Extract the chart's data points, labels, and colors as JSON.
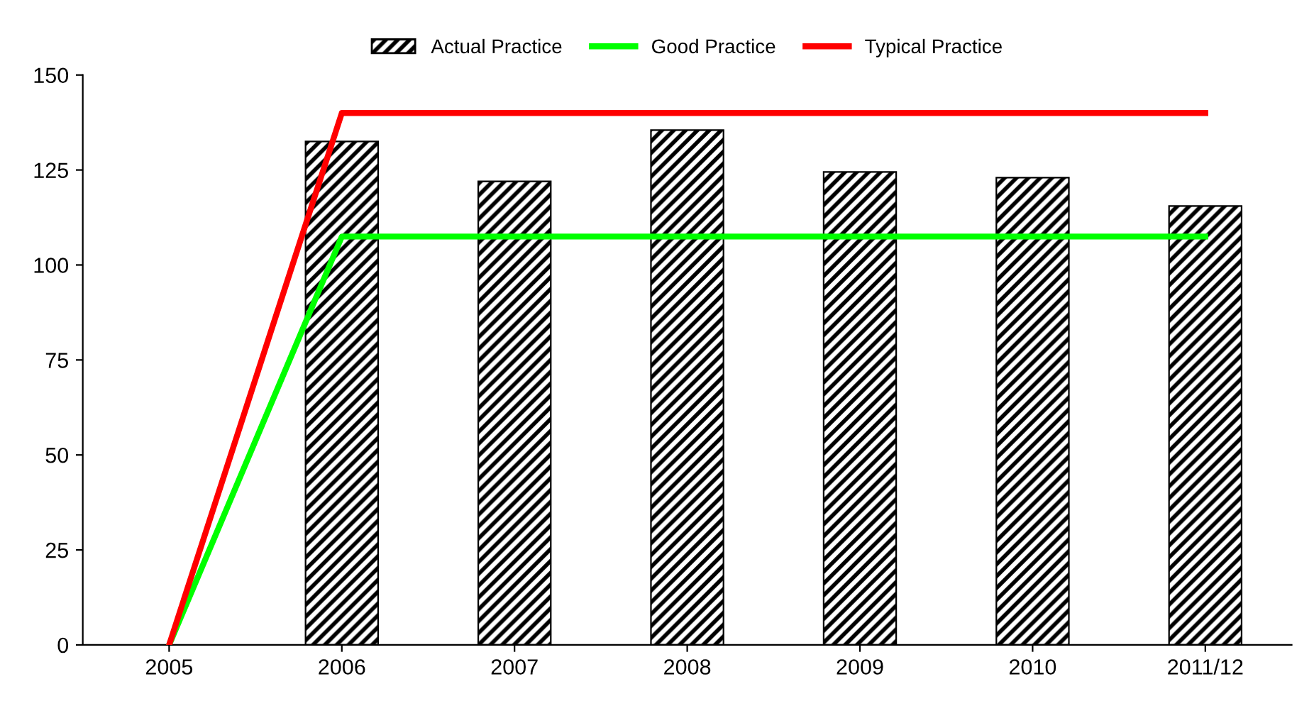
{
  "chart_data": {
    "type": "bar",
    "categories": [
      "2005",
      "2006",
      "2007",
      "2008",
      "2009",
      "2010",
      "2011/12"
    ],
    "series": [
      {
        "name": "Actual Practice",
        "color": "#000000",
        "values": [
          null,
          132.5,
          122,
          135.5,
          124.5,
          123,
          115.5
        ]
      },
      {
        "name": "Good Practice",
        "type": "line",
        "color": "#00ff00",
        "values": [
          0,
          107.5,
          107.5,
          107.5,
          107.5,
          107.5,
          107.5
        ]
      },
      {
        "name": "Typical Practice",
        "type": "line",
        "color": "#ff0000",
        "values": [
          0,
          140,
          140,
          140,
          140,
          140,
          140
        ]
      }
    ],
    "ylim": [
      0,
      150
    ],
    "yticks": [
      0,
      25,
      50,
      75,
      100,
      125,
      150
    ],
    "grid": false,
    "legend": "top",
    "marker": "none",
    "line_style": "solid"
  }
}
